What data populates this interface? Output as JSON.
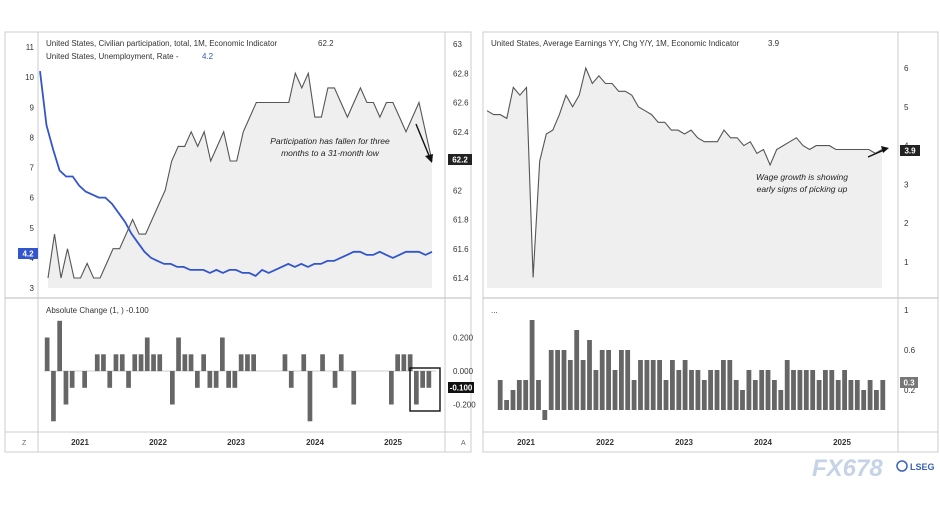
{
  "colors": {
    "unemployment": "#3355cc",
    "participation": "#555555",
    "earnings": "#555555",
    "bars": "#666666",
    "frame": "#cccccc",
    "badge_dark": "#222222",
    "badge_blue": "#3355cc",
    "badge_gray": "#777777"
  },
  "corner_z": "Z",
  "corner_a": "A",
  "watermark": {
    "brand": "FX678",
    "sub": "LSEG"
  },
  "chart_data": [
    {
      "type": "line",
      "title": "United States, Civilian participation, total, 1M, Economic Indicator",
      "title_value": "62.2",
      "subtitle": "United States, Unemployment, Rate -",
      "subtitle_value": "4.2",
      "x_ticks": [
        "2021",
        "2022",
        "2023",
        "2024",
        "2025"
      ],
      "left_axis": {
        "ticks": [
          "3",
          "4",
          "5",
          "6",
          "7",
          "8",
          "9",
          "10",
          "11"
        ],
        "ylim": [
          3,
          11
        ]
      },
      "right_axis": {
        "ticks": [
          "61.4",
          "61.6",
          "61.8",
          "62",
          "62.2",
          "62.4",
          "62.6",
          "62.8",
          "63"
        ],
        "ylim": [
          61.3,
          63
        ]
      },
      "x_start": "2020-09",
      "series": [
        {
          "name": "United States, Unemployment, Rate",
          "axis": "left",
          "last_value": "4.2",
          "values": [
            10.2,
            8.4,
            7.6,
            6.9,
            6.7,
            6.7,
            6.4,
            6.2,
            6.1,
            6.0,
            6.0,
            5.8,
            5.5,
            5.2,
            4.8,
            4.5,
            4.2,
            4.0,
            3.9,
            3.8,
            3.8,
            3.7,
            3.7,
            3.6,
            3.6,
            3.6,
            3.5,
            3.6,
            3.5,
            3.6,
            3.6,
            3.5,
            3.5,
            3.4,
            3.6,
            3.5,
            3.6,
            3.7,
            3.8,
            3.7,
            3.8,
            3.7,
            3.8,
            3.8,
            3.9,
            3.9,
            4.0,
            4.1,
            4.2,
            4.2,
            4.1,
            4.1,
            4.2,
            4.1,
            4.0,
            4.1,
            4.2,
            4.2,
            4.2,
            4.1,
            4.2
          ]
        },
        {
          "name": "United States, Civilian participation, total",
          "axis": "right",
          "last_value": "62.2",
          "values": [
            61.4,
            61.7,
            61.4,
            61.6,
            61.4,
            61.4,
            61.5,
            61.4,
            61.4,
            61.5,
            61.6,
            61.6,
            61.7,
            61.8,
            61.7,
            61.7,
            61.8,
            61.9,
            62.0,
            62.2,
            62.3,
            62.3,
            62.4,
            62.3,
            62.4,
            62.2,
            62.3,
            62.4,
            62.2,
            62.2,
            62.4,
            62.5,
            62.6,
            62.6,
            62.6,
            62.6,
            62.6,
            62.6,
            62.8,
            62.7,
            62.8,
            62.5,
            62.5,
            62.7,
            62.7,
            62.6,
            62.5,
            62.6,
            62.7,
            62.6,
            62.6,
            62.5,
            62.6,
            62.6,
            62.5,
            62.4,
            62.5,
            62.6,
            62.4,
            62.2
          ]
        }
      ],
      "annotation": [
        "Participation has fallen for three",
        "months to a 31-month low"
      ]
    },
    {
      "type": "bar",
      "title": "Absolute Change (1, ) -0.100",
      "x_ticks": [
        "2021",
        "2022",
        "2023",
        "2024",
        "2025"
      ],
      "y_ticks": [
        "-0.200",
        "0.000",
        "0.200"
      ],
      "ylim": [
        -0.33,
        0.36
      ],
      "last_value": "-0.100",
      "values": [
        0.2,
        -0.3,
        0.3,
        -0.2,
        -0.1,
        0.0,
        -0.1,
        0.0,
        0.1,
        0.1,
        -0.1,
        0.1,
        0.1,
        -0.1,
        0.1,
        0.1,
        0.2,
        0.1,
        0.1,
        0.0,
        -0.2,
        0.2,
        0.1,
        0.1,
        -0.1,
        0.1,
        -0.1,
        -0.1,
        0.2,
        -0.1,
        -0.1,
        0.1,
        0.1,
        0.1,
        0.0,
        0.0,
        0.0,
        0.0,
        0.1,
        -0.1,
        0.0,
        0.1,
        -0.3,
        0.0,
        0.1,
        0.0,
        -0.1,
        0.1,
        0.0,
        -0.2,
        0.0,
        0.0,
        0.0,
        0.0,
        0.0,
        -0.2,
        0.1,
        0.1,
        0.1,
        -0.2,
        -0.1,
        -0.1
      ]
    },
    {
      "type": "area",
      "title": "United States, Average Earnings YY, Chg Y/Y, 1M, Economic Indicator",
      "title_value": "3.9",
      "x_ticks": [
        "2021",
        "2022",
        "2023",
        "2024",
        "2025"
      ],
      "y_ticks": [
        "1",
        "2",
        "3",
        "4",
        "5",
        "6"
      ],
      "ylim": [
        0.5,
        6.9
      ],
      "last_value": "3.9",
      "values": [
        4.9,
        4.8,
        4.8,
        4.7,
        5.5,
        5.3,
        5.5,
        0.6,
        3.6,
        4.3,
        4.4,
        4.8,
        5.3,
        5.0,
        5.3,
        6.0,
        5.6,
        5.8,
        5.6,
        5.6,
        5.4,
        5.4,
        5.3,
        5.0,
        4.9,
        4.8,
        4.6,
        4.6,
        4.4,
        4.4,
        4.3,
        4.4,
        4.2,
        4.1,
        4.1,
        4.1,
        4.4,
        4.2,
        4.2,
        4.0,
        4.1,
        3.8,
        3.9,
        3.5,
        3.9,
        4.0,
        4.1,
        4.2,
        4.0,
        3.9,
        4.0,
        4.0,
        4.0,
        3.9,
        3.9,
        3.9,
        3.9,
        3.9,
        3.9,
        3.8,
        3.9
      ],
      "annotation": [
        "Wage growth is showing",
        "early signs of picking up"
      ]
    },
    {
      "type": "bar",
      "title": "...",
      "x_ticks": [
        "2021",
        "2022",
        "2023",
        "2024",
        "2025"
      ],
      "y_ticks": [
        "0.2",
        "0.6",
        "1"
      ],
      "ylim": [
        0,
        1.04
      ],
      "last_value": "0.3",
      "values": [
        0.3,
        0.1,
        0.2,
        0.3,
        0.3,
        0.9,
        0.3,
        -0.1,
        0.6,
        0.6,
        0.6,
        0.5,
        0.8,
        0.5,
        0.7,
        0.4,
        0.6,
        0.6,
        0.4,
        0.6,
        0.6,
        0.3,
        0.5,
        0.5,
        0.5,
        0.5,
        0.3,
        0.5,
        0.4,
        0.5,
        0.4,
        0.4,
        0.3,
        0.4,
        0.4,
        0.5,
        0.5,
        0.3,
        0.2,
        0.4,
        0.3,
        0.4,
        0.4,
        0.3,
        0.2,
        0.5,
        0.4,
        0.4,
        0.4,
        0.4,
        0.3,
        0.4,
        0.4,
        0.3,
        0.4,
        0.3,
        0.3,
        0.2,
        0.3,
        0.2,
        0.3
      ]
    }
  ]
}
